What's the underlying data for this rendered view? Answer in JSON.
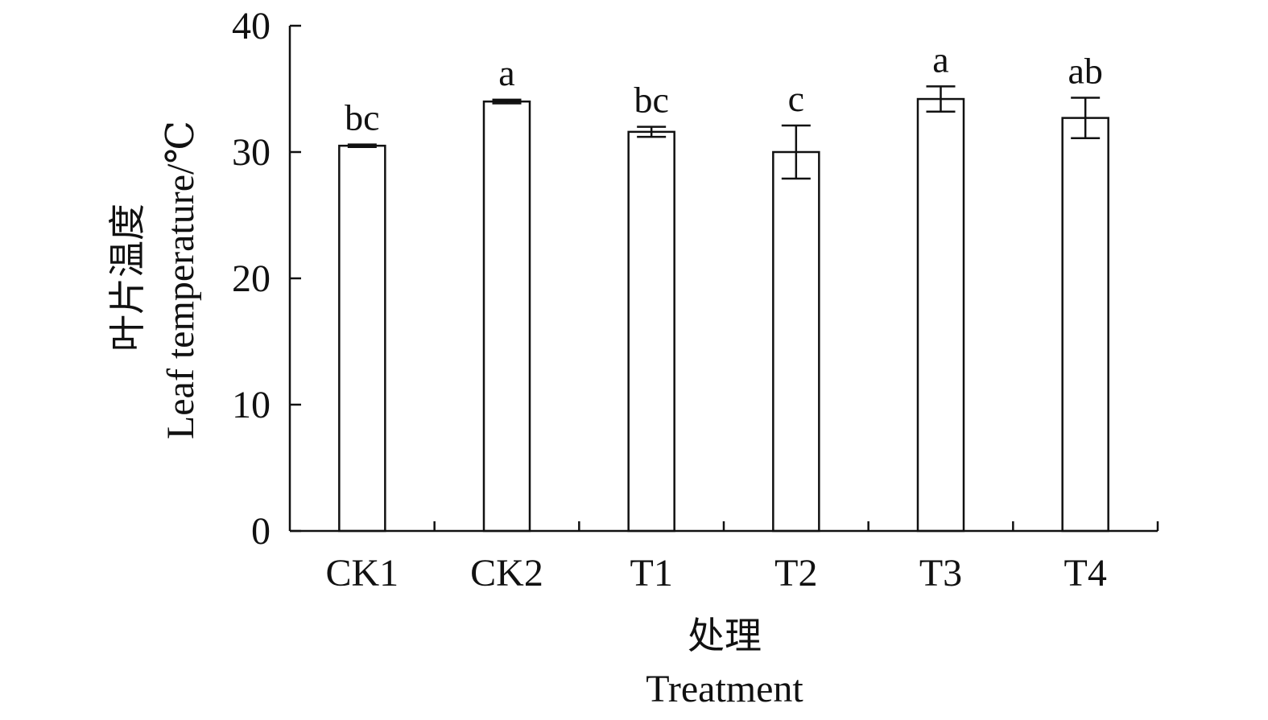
{
  "chart_data": {
    "type": "bar",
    "categories": [
      "CK1",
      "CK2",
      "T1",
      "T2",
      "T3",
      "T4"
    ],
    "values": [
      30.5,
      34.0,
      31.6,
      30.0,
      34.2,
      32.7
    ],
    "errors": [
      0.1,
      0.15,
      0.4,
      2.1,
      1.0,
      1.6
    ],
    "significance": [
      "bc",
      "a",
      "bc",
      "c",
      "a",
      "ab"
    ],
    "ylim": [
      0,
      40
    ],
    "yticks": [
      "0",
      "10",
      "20",
      "30",
      "40"
    ],
    "ylabel_cn": "叶片温度",
    "ylabel": "Leaf temperature/℃",
    "xlabel_cn": "处理",
    "xlabel": "Treatment",
    "title": ""
  }
}
